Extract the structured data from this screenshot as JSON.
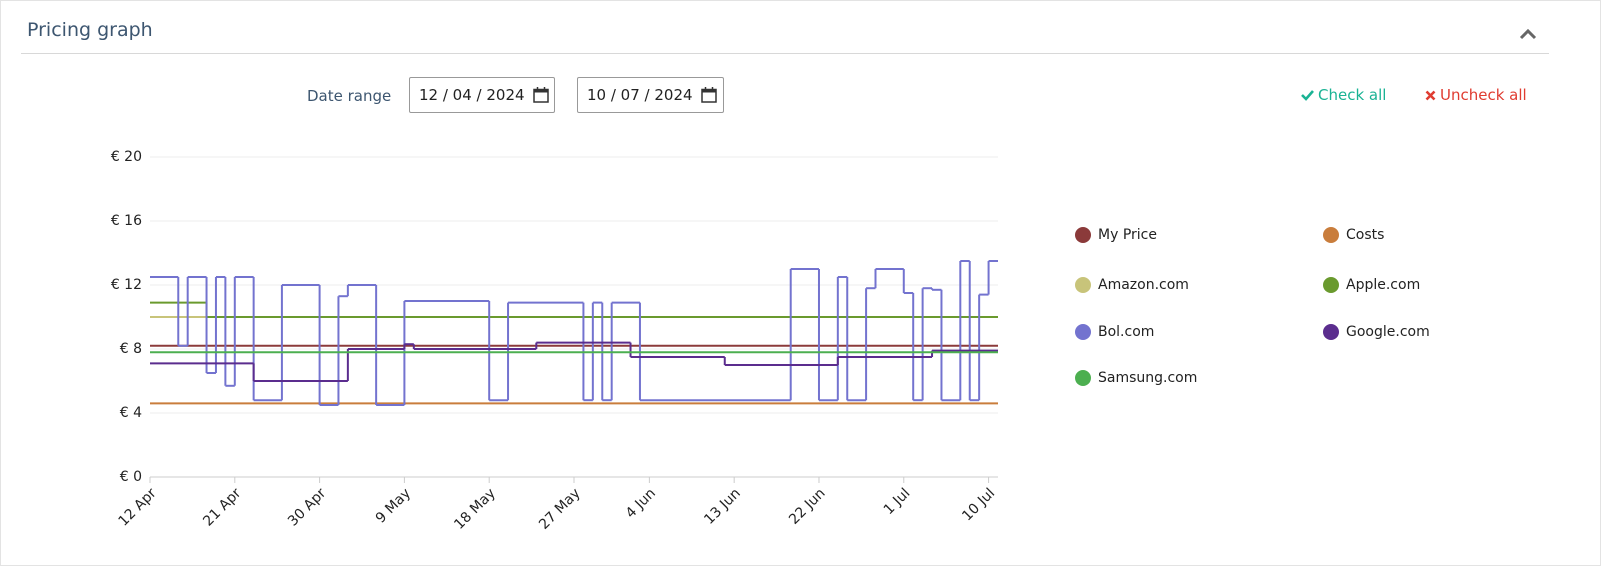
{
  "header": {
    "title": "Pricing graph"
  },
  "filters": {
    "label": "Date range",
    "start": "12 / 04 / 2024",
    "end": "10 / 07 / 2024",
    "check_all": "Check all",
    "uncheck_all": "Uncheck all"
  },
  "chart_data": {
    "type": "line",
    "step": true,
    "xlim": [
      "12 Apr",
      "11 Jul"
    ],
    "xticks": [
      "12 Apr",
      "21 Apr",
      "30 Apr",
      "9 May",
      "18 May",
      "27 May",
      "4 Jun",
      "13 Jun",
      "22 Jun",
      "1 Jul",
      "10 Jul"
    ],
    "ylim": [
      0,
      20
    ],
    "yticks": [
      {
        "value": 0,
        "label": "€ 0"
      },
      {
        "value": 4,
        "label": "€ 4"
      },
      {
        "value": 8,
        "label": "€ 8"
      },
      {
        "value": 12,
        "label": "€ 12"
      },
      {
        "value": 16,
        "label": "€ 16"
      },
      {
        "value": 20,
        "label": "€ 20"
      }
    ],
    "grid": true,
    "legend": "right",
    "series": [
      {
        "name": "My Price",
        "color": "#8b3a3a",
        "x": [
          "12 Apr"
        ],
        "values": [
          8.2
        ]
      },
      {
        "name": "Costs",
        "color": "#c97d3c",
        "x": [
          "12 Apr"
        ],
        "values": [
          4.6
        ]
      },
      {
        "name": "Amazon.com",
        "color": "#c8c47a",
        "x": [
          "12 Apr"
        ],
        "values": [
          10.0
        ]
      },
      {
        "name": "Apple.com",
        "color": "#6a9a2e",
        "x": [
          "12 Apr",
          "18 Apr"
        ],
        "values": [
          10.9,
          10.0
        ]
      },
      {
        "name": "Bol.com",
        "color": "#7373cf",
        "x": [
          "12 Apr",
          "15 Apr",
          "16 Apr",
          "18 Apr",
          "19 Apr",
          "20 Apr",
          "21 Apr",
          "23 Apr",
          "26 Apr",
          "30 Apr",
          "2 May",
          "3 May",
          "6 May",
          "9 May",
          "18 May",
          "20 May",
          "28 May",
          "29 May",
          "30 May",
          "31 May",
          "3 Jun",
          "19 Jun",
          "22 Jun",
          "24 Jun",
          "25 Jun",
          "27 Jun",
          "28 Jun",
          "1 Jul",
          "2 Jul",
          "3 Jul",
          "4 Jul",
          "5 Jul",
          "7 Jul",
          "8 Jul",
          "9 Jul",
          "10 Jul"
        ],
        "values": [
          12.5,
          8.2,
          12.5,
          6.5,
          12.5,
          5.7,
          12.5,
          4.8,
          12.0,
          4.5,
          11.3,
          12.0,
          4.5,
          11.0,
          4.8,
          10.9,
          4.8,
          10.9,
          4.8,
          10.9,
          4.8,
          13.0,
          4.8,
          12.5,
          4.8,
          11.8,
          13.0,
          11.5,
          4.8,
          11.8,
          11.7,
          4.8,
          13.5,
          4.8,
          11.4,
          13.5
        ]
      },
      {
        "name": "Google.com",
        "color": "#5b2d8e",
        "x": [
          "12 Apr",
          "23 Apr",
          "3 May",
          "9 May",
          "10 May",
          "23 May",
          "2 Jun",
          "12 Jun",
          "24 Jun",
          "4 Jul"
        ],
        "values": [
          7.1,
          6.0,
          8.0,
          8.3,
          8.0,
          8.4,
          7.5,
          7.0,
          7.5,
          7.9
        ]
      },
      {
        "name": "Samsung.com",
        "color": "#4caf50",
        "x": [
          "12 Apr"
        ],
        "values": [
          7.8
        ]
      }
    ]
  }
}
